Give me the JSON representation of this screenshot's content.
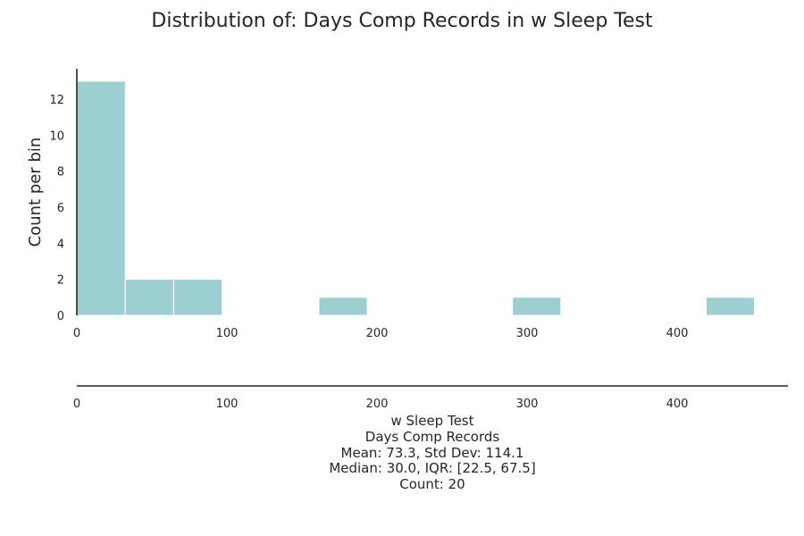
{
  "chart_data": {
    "type": "bar",
    "title": "Distribution of: Days Comp Records in w Sleep Test",
    "ylabel": "Count per bin",
    "xlim": [
      0,
      470
    ],
    "ylim": [
      0,
      13.7
    ],
    "x_ticks": [
      0,
      100,
      200,
      300,
      400
    ],
    "y_ticks": [
      0,
      2,
      4,
      6,
      8,
      10,
      12
    ],
    "bins": [
      {
        "x0": 0,
        "x1": 32.3,
        "count": 13
      },
      {
        "x0": 32.3,
        "x1": 64.5,
        "count": 2
      },
      {
        "x0": 64.5,
        "x1": 96.8,
        "count": 2
      },
      {
        "x0": 96.8,
        "x1": 129.0,
        "count": 0
      },
      {
        "x0": 129.0,
        "x1": 161.3,
        "count": 0
      },
      {
        "x0": 161.3,
        "x1": 193.5,
        "count": 1
      },
      {
        "x0": 193.5,
        "x1": 225.8,
        "count": 0
      },
      {
        "x0": 225.8,
        "x1": 258.0,
        "count": 0
      },
      {
        "x0": 258.0,
        "x1": 290.3,
        "count": 0
      },
      {
        "x0": 290.3,
        "x1": 322.5,
        "count": 1
      },
      {
        "x0": 322.5,
        "x1": 354.8,
        "count": 0
      },
      {
        "x0": 354.8,
        "x1": 387.0,
        "count": 0
      },
      {
        "x0": 387.0,
        "x1": 419.3,
        "count": 0
      },
      {
        "x0": 419.3,
        "x1": 451.5,
        "count": 1
      }
    ],
    "bar_color": "#9ccfcf",
    "grid": false,
    "summary": {
      "group": "w Sleep Test",
      "variable": "Days Comp Records",
      "stats": "Mean: 73.3, Std Dev: 114.1",
      "median_iqr": "Median: 30.0, IQR: [22.5, 67.5]",
      "count": "Count: 20"
    }
  }
}
